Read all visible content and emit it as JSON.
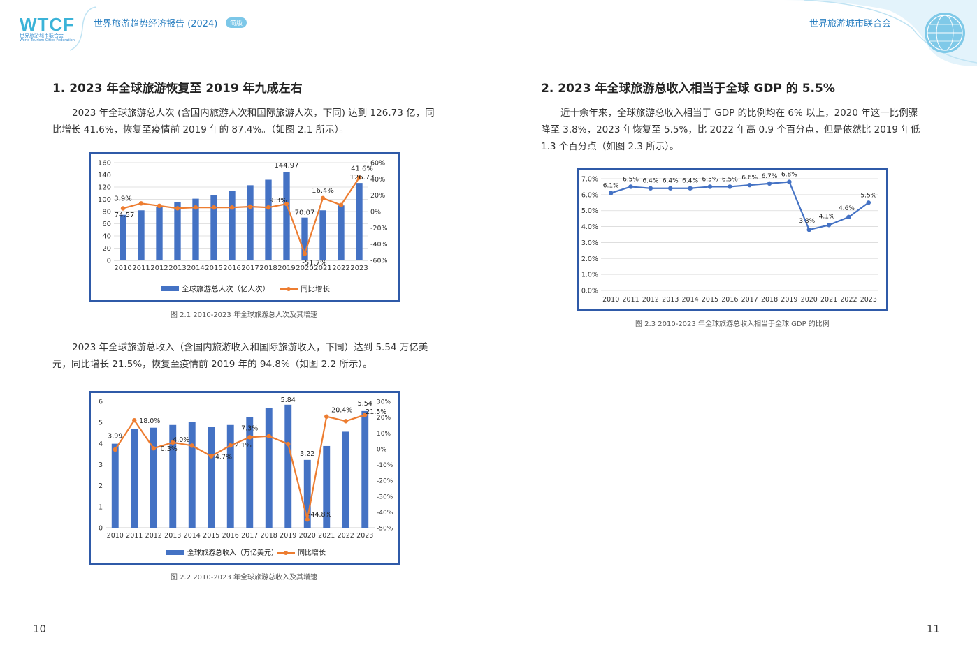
{
  "header": {
    "logo_text": "WTCF",
    "logo_sub_cn": "世界旅游城市联合会",
    "logo_sub_en": "World Tourism Cities Federation",
    "report_title": "世界旅游趋势经济报告 (2024)",
    "report_badge": "简版",
    "org_name": "世界旅游城市联合会"
  },
  "left": {
    "section_title": "1. 2023 年全球旅游恢复至 2019 年九成左右",
    "para1": "2023 年全球旅游总人次 (含国内旅游人次和国际旅游人次，下同) 达到 126.73 亿，同比增长 41.6%，恢复至疫情前 2019 年的 87.4%。（如图 2.1 所示）。",
    "caption1": "图 2.1  2010-2023 年全球旅游总人次及其增速",
    "para2": "2023 年全球旅游总收入（含国内旅游收入和国际旅游收入，下同）达到 5.54 万亿美元，同比增长 21.5%，恢复至疫情前 2019 年的 94.8%（如图 2.2 所示）。",
    "caption2": "图 2.2  2010-2023 年全球旅游总收入及其增速",
    "page_number": "10"
  },
  "right": {
    "section_title": "2. 2023 年全球旅游总收入相当于全球 GDP 的 5.5%",
    "para": "近十余年来，全球旅游总收入相当于 GDP 的比例均在 6% 以上，2020 年这一比例骤降至 3.8%，2023 年恢复至 5.5%，比 2022 年高 0.9 个百分点，但是依然比 2019 年低 1.3 个百分点（如图 2.3 所示）。",
    "caption": "图 2.3  2010-2023 年全球旅游总收入相当于全球 GDP 的比例",
    "page_number": "11"
  },
  "chart_data": [
    {
      "type": "bar",
      "categories": [
        "2010",
        "2011",
        "2012",
        "2013",
        "2014",
        "2015",
        "2016",
        "2017",
        "2018",
        "2019",
        "2020",
        "2021",
        "2022",
        "2023"
      ],
      "series": [
        {
          "name": "全球旅游总人次（亿人次）",
          "type": "bar",
          "axis": "left",
          "values": [
            74.57,
            82,
            88,
            95,
            101,
            107,
            114,
            123,
            132,
            144.97,
            70.07,
            82,
            90,
            126.73
          ],
          "labels": [
            "74.57",
            "",
            "",
            "",
            "",
            "",
            "",
            "",
            "",
            "144.97",
            "70.07",
            "",
            "",
            "126.73"
          ]
        },
        {
          "name": "同比增长",
          "type": "line",
          "axis": "right",
          "values": [
            3.9,
            10,
            7,
            4,
            5,
            5,
            5,
            6,
            5,
            9.3,
            -51.7,
            16.4,
            8,
            41.6
          ],
          "labels": [
            "3.9%",
            "",
            "",
            "",
            "",
            "",
            "",
            "",
            "",
            "9.3%",
            "-51.7%",
            "16.4%",
            "",
            "41.6%"
          ]
        }
      ],
      "y_left": {
        "min": 0,
        "max": 160,
        "step": 20,
        "ticks": [
          "0",
          "20",
          "40",
          "60",
          "80",
          "100",
          "120",
          "140",
          "160"
        ]
      },
      "y_right": {
        "min": -60,
        "max": 60,
        "step": 20,
        "ticks": [
          "-60%",
          "-40%",
          "-20%",
          "0%",
          "20%",
          "40%",
          "60%"
        ]
      },
      "legend_position": "bottom",
      "grid": true
    },
    {
      "type": "bar",
      "categories": [
        "2010",
        "2011",
        "2012",
        "2013",
        "2014",
        "2015",
        "2016",
        "2017",
        "2018",
        "2019",
        "2020",
        "2021",
        "2022",
        "2023"
      ],
      "series": [
        {
          "name": "全球旅游总收入（万亿美元）",
          "type": "bar",
          "axis": "left",
          "values": [
            3.99,
            4.7,
            4.75,
            4.88,
            5.02,
            4.78,
            4.88,
            5.25,
            5.68,
            5.84,
            3.22,
            3.88,
            4.56,
            5.54
          ],
          "labels": [
            "3.99",
            "",
            "",
            "",
            "",
            "",
            "",
            "",
            "",
            "5.84",
            "3.22",
            "",
            "",
            "5.54"
          ]
        },
        {
          "name": "同比增长",
          "type": "line",
          "axis": "right",
          "values": [
            -0.5,
            18.0,
            0.3,
            4.0,
            2.0,
            -4.7,
            2.1,
            7.3,
            8.0,
            3.0,
            -44.8,
            20.4,
            17.5,
            21.5
          ],
          "labels": [
            "",
            "18.0%",
            "0.3%",
            "4.0%",
            "",
            "-4.7%",
            "2.1%",
            "7.3%",
            "",
            "",
            "-44.8%",
            "20.4%",
            "",
            "21.5%"
          ]
        }
      ],
      "y_left": {
        "min": 0,
        "max": 6,
        "step": 1,
        "ticks": [
          "0",
          "1",
          "2",
          "3",
          "4",
          "5",
          "6"
        ]
      },
      "y_right": {
        "min": -50,
        "max": 30,
        "step": 10,
        "ticks": [
          "-50%",
          "-40%",
          "-30%",
          "-20%",
          "-10%",
          "0%",
          "10%",
          "20%",
          "30%"
        ]
      },
      "legend_position": "bottom",
      "grid": false
    },
    {
      "type": "line",
      "categories": [
        "2010",
        "2011",
        "2012",
        "2013",
        "2014",
        "2015",
        "2016",
        "2017",
        "2018",
        "2019",
        "2020",
        "2021",
        "2022",
        "2023"
      ],
      "series": [
        {
          "name": "",
          "values": [
            6.1,
            6.5,
            6.4,
            6.4,
            6.4,
            6.5,
            6.5,
            6.6,
            6.7,
            6.8,
            3.8,
            4.1,
            4.6,
            5.5
          ],
          "labels": [
            "6.1%",
            "6.5%",
            "6.4%",
            "6.4%",
            "6.4%",
            "6.5%",
            "6.5%",
            "6.6%",
            "6.7%",
            "6.8%",
            "3.8%",
            "4.1%",
            "4.6%",
            "5.5%"
          ]
        }
      ],
      "y": {
        "min": 0,
        "max": 7,
        "step": 1,
        "ticks": [
          "0.0%",
          "1.0%",
          "2.0%",
          "3.0%",
          "4.0%",
          "5.0%",
          "6.0%",
          "7.0%"
        ]
      },
      "legend_position": "none",
      "grid": true
    }
  ],
  "colors": {
    "bar": "#4472c4",
    "growth_line": "#ed7d31",
    "gdp_line": "#4472c4",
    "frame": "#2f5aa8",
    "accent": "#2a7fc1"
  }
}
